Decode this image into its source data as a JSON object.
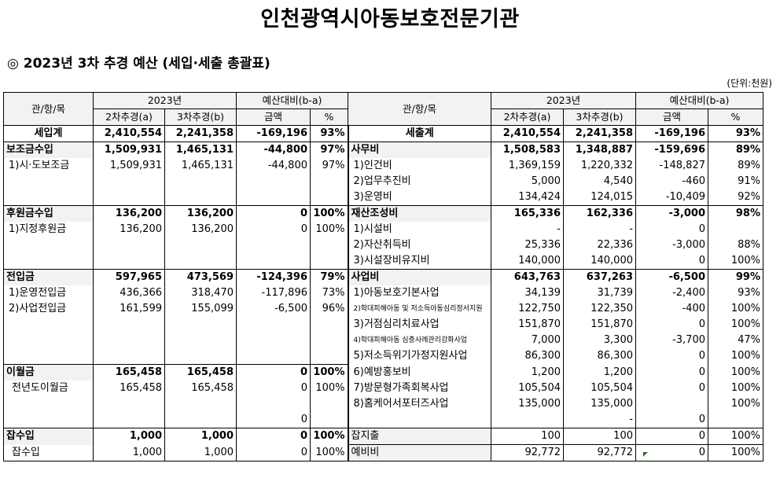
{
  "title": "인천광역시아동보호전문기관",
  "subtitle": "◎ 2023년 3차 추경 예산 (세입·세출 총괄표)",
  "unit": "(단위:천원)",
  "header": {
    "category": "관/항/목",
    "year": "2023년",
    "col_a": "2차추경(a)",
    "col_b": "3차추경(b)",
    "diff": "예산대비(b-a)",
    "amount": "금액",
    "pct": "%"
  },
  "rows": [
    {
      "li": "세입계",
      "la": "2,410,554",
      "lb": "2,241,358",
      "ld": "-169,196",
      "lp": "93%",
      "ri": "세출계",
      "ra": "2,410,554",
      "rb": "2,241,358",
      "rd": "-169,196",
      "rp": "93%"
    },
    {
      "li": "보조금수입",
      "la": "1,509,931",
      "lb": "1,465,131",
      "ld": "-44,800",
      "lp": "97%",
      "ri": "사무비",
      "ra": "1,508,583",
      "rb": "1,348,887",
      "rd": "-159,696",
      "rp": "89%"
    },
    {
      "li": "1)시·도보조금",
      "la": "1,509,931",
      "lb": "1,465,131",
      "ld": "-44,800",
      "lp": "97%",
      "ri": "1)인건비",
      "ra": "1,369,159",
      "rb": "1,220,332",
      "rd": "-148,827",
      "rp": "89%"
    },
    {
      "li": "",
      "la": "",
      "lb": "",
      "ld": "",
      "lp": "",
      "ri": "2)업무추진비",
      "ra": "5,000",
      "rb": "4,540",
      "rd": "-460",
      "rp": "91%"
    },
    {
      "li": "",
      "la": "",
      "lb": "",
      "ld": "",
      "lp": "",
      "ri": "3)운영비",
      "ra": "134,424",
      "rb": "124,015",
      "rd": "-10,409",
      "rp": "92%"
    },
    {
      "li": "후원금수입",
      "la": "136,200",
      "lb": "136,200",
      "ld": "0",
      "lp": "100%",
      "ri": "재산조성비",
      "ra": "165,336",
      "rb": "162,336",
      "rd": "-3,000",
      "rp": "98%"
    },
    {
      "li": "1)지정후원금",
      "la": "136,200",
      "lb": "136,200",
      "ld": "0",
      "lp": "100%",
      "ri": "1)시설비",
      "ra": "-",
      "rb": "-",
      "rd": "0",
      "rp": ""
    },
    {
      "li": "",
      "la": "",
      "lb": "",
      "ld": "",
      "lp": "",
      "ri": "2)자산취득비",
      "ra": "25,336",
      "rb": "22,336",
      "rd": "-3,000",
      "rp": "88%"
    },
    {
      "li": "",
      "la": "",
      "lb": "",
      "ld": "",
      "lp": "",
      "ri": "3)시설장비유지비",
      "ra": "140,000",
      "rb": "140,000",
      "rd": "0",
      "rp": "100%"
    },
    {
      "li": "전입금",
      "la": "597,965",
      "lb": "473,569",
      "ld": "-124,396",
      "lp": "79%",
      "ri": "사업비",
      "ra": "643,763",
      "rb": "637,263",
      "rd": "-6,500",
      "rp": "99%"
    },
    {
      "li": "1)운영전입금",
      "la": "436,366",
      "lb": "318,470",
      "ld": "-117,896",
      "lp": "73%",
      "ri": "1)아동보호기본사업",
      "ra": "34,139",
      "rb": "31,739",
      "rd": "-2,400",
      "rp": "93%"
    },
    {
      "li": "2)사업전입금",
      "la": "161,599",
      "lb": "155,099",
      "ld": "-6,500",
      "lp": "96%",
      "ri": "2)학대피해아동 및 저소득아동심리정서지원",
      "ra": "122,750",
      "rb": "122,350",
      "rd": "-400",
      "rp": "100%"
    },
    {
      "li": "",
      "la": "",
      "lb": "",
      "ld": "",
      "lp": "",
      "ri": "3)거점심리치료사업",
      "ra": "151,870",
      "rb": "151,870",
      "rd": "0",
      "rp": "100%"
    },
    {
      "li": "",
      "la": "",
      "lb": "",
      "ld": "",
      "lp": "",
      "ri": "4)학대피해아동 심층사례관리강화사업",
      "ra": "7,000",
      "rb": "3,300",
      "rd": "-3,700",
      "rp": "47%"
    },
    {
      "li": "",
      "la": "",
      "lb": "",
      "ld": "",
      "lp": "",
      "ri": "5)저소득위기가정지원사업",
      "ra": "86,300",
      "rb": "86,300",
      "rd": "0",
      "rp": "100%"
    },
    {
      "li": "이월금",
      "la": "165,458",
      "lb": "165,458",
      "ld": "0",
      "lp": "100%",
      "ri": "6)예방홍보비",
      "ra": "1,200",
      "rb": "1,200",
      "rd": "0",
      "rp": "100%"
    },
    {
      "li": "전년도이월금",
      "la": "165,458",
      "lb": "165,458",
      "ld": "0",
      "lp": "100%",
      "ri": "7)방문형가족회복사업",
      "ra": "105,504",
      "rb": "105,504",
      "rd": "0",
      "rp": "100%"
    },
    {
      "li": "",
      "la": "",
      "lb": "",
      "ld": "",
      "lp": "",
      "ri": "8)홈케어서포터즈사업",
      "ra": "135,000",
      "rb": "135,000",
      "rd": "",
      "rp": "100%"
    },
    {
      "li": "",
      "la": "",
      "lb": "",
      "ld": "0",
      "lp": "",
      "ri": "",
      "ra": "",
      "rb": "-",
      "rd": "0",
      "rp": ""
    },
    {
      "li": "잡수입",
      "la": "1,000",
      "lb": "1,000",
      "ld": "0",
      "lp": "100%",
      "ri": "잡지출",
      "ra": "100",
      "rb": "100",
      "rd": "0",
      "rp": "100%"
    },
    {
      "li": "잡수입",
      "la": "1,000",
      "lb": "1,000",
      "ld": "0",
      "lp": "100%",
      "ri": "예비비",
      "ra": "92,772",
      "rb": "92,772",
      "rd": "0",
      "rp": "100%"
    }
  ]
}
